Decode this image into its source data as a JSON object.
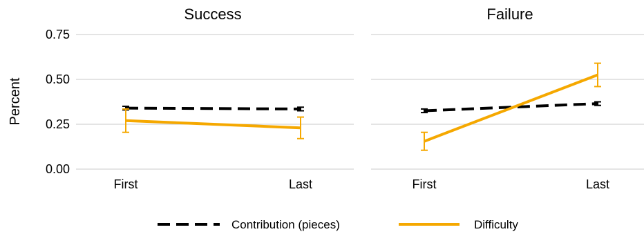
{
  "chart_data": {
    "type": "line",
    "ylabel": "Percent",
    "ylim": [
      0,
      0.75
    ],
    "yticks": [
      "0.00",
      "0.25",
      "0.50",
      "0.75"
    ],
    "categories": [
      "First",
      "Last"
    ],
    "grid": true,
    "legend_position": "bottom",
    "legend": [
      {
        "name": "Contribution (pieces)",
        "color": "#000000",
        "style": "dashed"
      },
      {
        "name": "Difficulty",
        "color": "#F5A800",
        "style": "solid"
      }
    ],
    "panels": [
      {
        "title": "Success",
        "series": [
          {
            "name": "Contribution (pieces)",
            "values": [
              0.34,
              0.335
            ],
            "errors": [
              [
                0.33,
                0.35
              ],
              [
                0.325,
                0.345
              ]
            ]
          },
          {
            "name": "Difficulty",
            "values": [
              0.27,
              0.23
            ],
            "errors": [
              [
                0.205,
                0.335
              ],
              [
                0.17,
                0.29
              ]
            ]
          }
        ]
      },
      {
        "title": "Failure",
        "series": [
          {
            "name": "Contribution (pieces)",
            "values": [
              0.325,
              0.365
            ],
            "errors": [
              [
                0.315,
                0.335
              ],
              [
                0.355,
                0.375
              ]
            ]
          },
          {
            "name": "Difficulty",
            "values": [
              0.155,
              0.525
            ],
            "errors": [
              [
                0.105,
                0.205
              ],
              [
                0.46,
                0.59
              ]
            ]
          }
        ]
      }
    ]
  }
}
